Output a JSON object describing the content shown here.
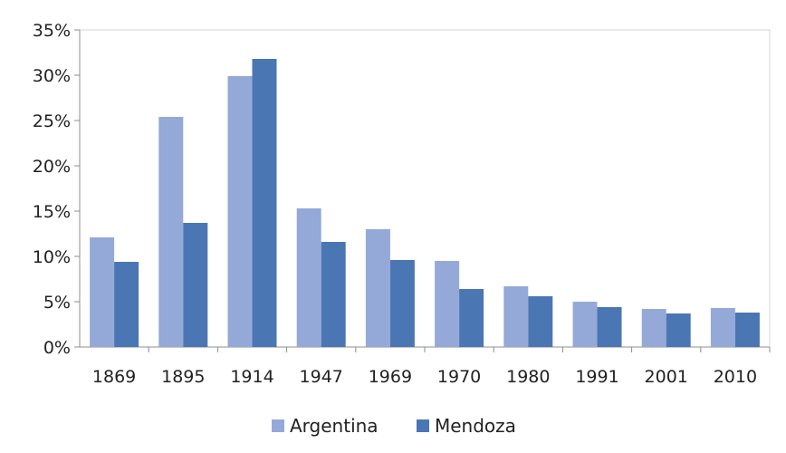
{
  "chart_data": {
    "type": "bar",
    "title": "",
    "xlabel": "",
    "ylabel": "",
    "categories": [
      "1869",
      "1895",
      "1914",
      "1947",
      "1969",
      "1970",
      "1980",
      "1991",
      "2001",
      "2010"
    ],
    "series": [
      {
        "name": "Argentina",
        "color": "#95a9d8",
        "values": [
          12.1,
          25.4,
          29.9,
          15.3,
          13.0,
          9.5,
          6.7,
          5.0,
          4.2,
          4.3
        ]
      },
      {
        "name": "Mendoza",
        "color": "#4a76b3",
        "values": [
          9.4,
          13.7,
          31.8,
          11.6,
          9.6,
          6.4,
          5.6,
          4.4,
          3.7,
          3.8
        ]
      }
    ],
    "ylim": [
      0,
      35
    ],
    "yticks": [
      0,
      5,
      10,
      15,
      20,
      25,
      30,
      35
    ],
    "y_tick_labels": [
      "0%",
      "5%",
      "10%",
      "15%",
      "20%",
      "25%",
      "30%",
      "35%"
    ],
    "grid": false,
    "legend_position": "bottom-center"
  }
}
